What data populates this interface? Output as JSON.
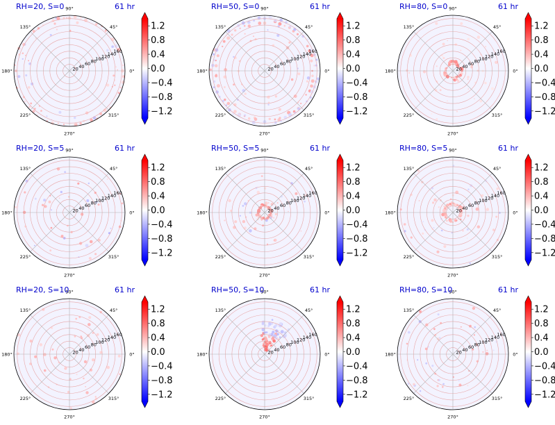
{
  "figure": {
    "colorbar": {
      "ticks": [
        "1.2",
        "0.8",
        "0.4",
        "0.0",
        "−0.4",
        "−0.8",
        "−1.2"
      ],
      "tick_values": [
        1.2,
        0.8,
        0.4,
        0.0,
        -0.4,
        -0.8,
        -1.2
      ],
      "vmin": -1.4,
      "vmax": 1.4,
      "extend": "both",
      "colormap": "bwr",
      "colors": {
        "low": "#0000ff",
        "mid": "#ffffff",
        "high": "#ff0000"
      }
    },
    "polar_axes": {
      "angle_labels": [
        "90°",
        "45°",
        "0°",
        "315°",
        "270°",
        "225°",
        "180°",
        "135°"
      ],
      "radial_labels": [
        "20",
        "40",
        "60",
        "80",
        "100",
        "120",
        "140",
        "160"
      ],
      "rmax": 170,
      "grid": true
    },
    "time_label": "61 hr"
  },
  "chart_data": [
    {
      "type": "heatmap",
      "projection": "polar",
      "title": "RH=20, S=0",
      "time": "61 hr",
      "zlim": [
        -1.4,
        1.4
      ],
      "features": [
        {
          "kind": "speckle",
          "r": [
            120,
            170
          ],
          "sign": "mixed",
          "amp": 0.5
        },
        {
          "kind": "ring",
          "r": 165,
          "sign": "positive",
          "amp": 0.5
        }
      ]
    },
    {
      "type": "heatmap",
      "projection": "polar",
      "title": "RH=50, S=0",
      "time": "61 hr",
      "zlim": [
        -1.4,
        1.4
      ],
      "features": [
        {
          "kind": "ring",
          "r": 150,
          "sign": "positive",
          "amp": 0.6
        },
        {
          "kind": "ring",
          "r": 160,
          "sign": "negative",
          "amp": 0.4
        },
        {
          "kind": "speckle",
          "r": [
            80,
            170
          ],
          "sign": "mixed",
          "amp": 0.5
        }
      ]
    },
    {
      "type": "heatmap",
      "projection": "polar",
      "title": "RH=80, S=0",
      "time": "61 hr",
      "zlim": [
        -1.4,
        1.4
      ],
      "features": [
        {
          "kind": "ring",
          "r": 25,
          "sign": "positive",
          "amp": 0.8
        },
        {
          "kind": "speckle",
          "r": [
            20,
            170
          ],
          "sign": "positive",
          "amp": 0.3
        }
      ]
    },
    {
      "type": "heatmap",
      "projection": "polar",
      "title": "RH=20, S=5",
      "time": "61 hr",
      "zlim": [
        -1.4,
        1.4
      ],
      "features": [
        {
          "kind": "speckle",
          "r": [
            30,
            170
          ],
          "sign": "mixed",
          "amp": 0.6
        }
      ]
    },
    {
      "type": "heatmap",
      "projection": "polar",
      "title": "RH=50, S=5",
      "time": "61 hr",
      "zlim": [
        -1.4,
        1.4
      ],
      "features": [
        {
          "kind": "ring",
          "r": 20,
          "sign": "positive",
          "amp": 0.7
        },
        {
          "kind": "speckle",
          "r": [
            20,
            140
          ],
          "sign": "mixed",
          "amp": 0.5
        }
      ]
    },
    {
      "type": "heatmap",
      "projection": "polar",
      "title": "RH=80, S=5",
      "time": "61 hr",
      "zlim": [
        -1.4,
        1.4
      ],
      "features": [
        {
          "kind": "ring",
          "r": 28,
          "sign": "positive",
          "amp": 0.6
        },
        {
          "kind": "speckle",
          "r": [
            40,
            170
          ],
          "sign": "mixed",
          "amp": 0.5
        }
      ]
    },
    {
      "type": "heatmap",
      "projection": "polar",
      "title": "RH=20, S=10",
      "time": "61 hr",
      "zlim": [
        -1.4,
        1.4
      ],
      "features": [
        {
          "kind": "speckle",
          "r": [
            40,
            170
          ],
          "sign": "positive",
          "amp": 0.5
        }
      ]
    },
    {
      "type": "heatmap",
      "projection": "polar",
      "title": "RH=50, S=10",
      "time": "61 hr",
      "zlim": [
        -1.4,
        1.4
      ],
      "features": [
        {
          "kind": "sector",
          "r": [
            10,
            70
          ],
          "sign": "positive",
          "amp": 0.9
        },
        {
          "kind": "sector",
          "r": [
            60,
            110
          ],
          "sign": "negative",
          "amp": 0.4
        }
      ]
    },
    {
      "type": "heatmap",
      "projection": "polar",
      "title": "RH=80, S=10",
      "time": "61 hr",
      "zlim": [
        -1.4,
        1.4
      ],
      "features": [
        {
          "kind": "speckle",
          "r": [
            60,
            170
          ],
          "sign": "mixed",
          "amp": 0.6
        }
      ]
    }
  ]
}
